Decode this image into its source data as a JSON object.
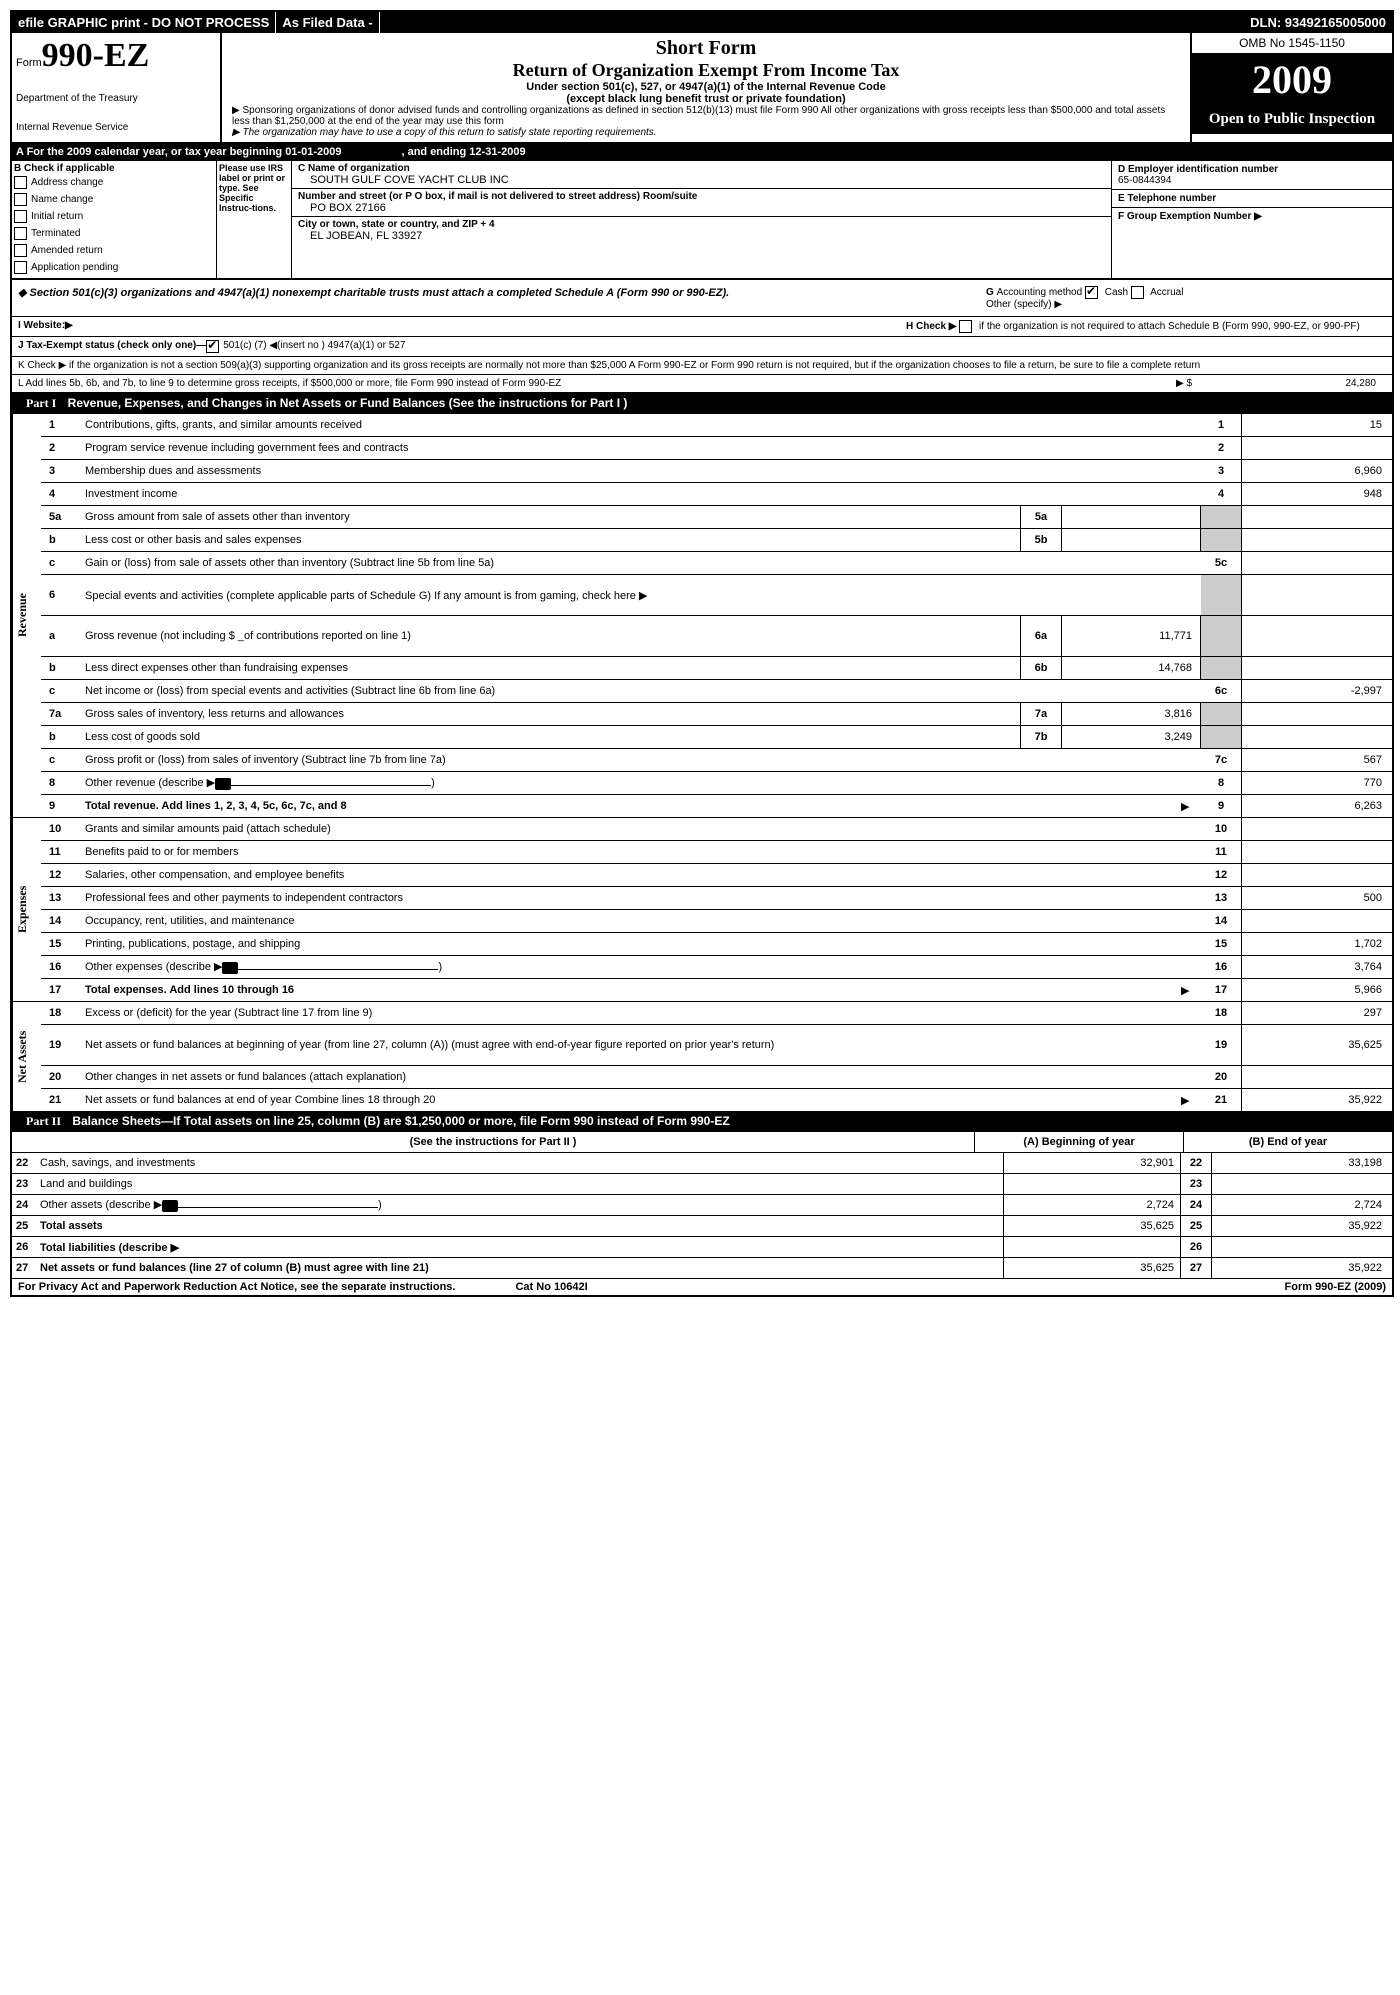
{
  "topbar": {
    "efile": "efile GRAPHIC print - DO NOT PROCESS",
    "asfiled": "As Filed Data -",
    "dln": "DLN: 93492165005000"
  },
  "header": {
    "form_label": "Form",
    "form_no": "990-EZ",
    "dept1": "Department of the Treasury",
    "dept2": "Internal Revenue Service",
    "short_form": "Short Form",
    "title": "Return of Organization Exempt From Income Tax",
    "sub1": "Under section 501(c), 527, or 4947(a)(1) of the Internal Revenue Code",
    "sub2": "(except black lung benefit trust or private foundation)",
    "note1": "▶ Sponsoring organizations of donor advised funds and controlling organizations as defined in section 512(b)(13) must file Form 990 All other organizations with gross receipts less than $500,000 and total assets less than $1,250,000 at the end of the year may use this form",
    "note2": "▶ The organization may have to use a copy of this return to satisfy state reporting requirements.",
    "omb": "OMB No 1545-1150",
    "year": "2009",
    "open": "Open to Public Inspection"
  },
  "rowA": {
    "text": "A  For the 2009 calendar year, or tax year beginning 01-01-2009",
    "ending": ", and ending 12-31-2009"
  },
  "colB": {
    "header": "B  Check if applicable",
    "items": [
      "Address change",
      "Name change",
      "Initial return",
      "Terminated",
      "Amended return",
      "Application pending"
    ]
  },
  "colLabel": "Please use IRS label or print or type. See Specific Instruc-tions.",
  "colC": {
    "name_label": "C Name of organization",
    "name": "SOUTH GULF COVE YACHT CLUB INC",
    "addr_label": "Number and street (or P O box, if mail is not delivered to street address) Room/suite",
    "addr": "PO BOX 27166",
    "city_label": "City or town, state or country, and ZIP + 4",
    "city": "EL JOBEAN, FL 33927"
  },
  "colRight": {
    "d_label": "D Employer identification number",
    "d_val": "65-0844394",
    "e_label": "E Telephone number",
    "f_label": "F Group Exemption Number  ▶"
  },
  "section501": {
    "left": "◆ Section 501(c)(3) organizations and 4947(a)(1) nonexempt charitable trusts must attach a completed Schedule A (Form 990 or 990-EZ).",
    "g": "G Accounting method      Other (specify) ▶",
    "cash": "Cash",
    "accrual": "Accrual"
  },
  "rowI": "I Website:▶",
  "rowH": {
    "h": "H  Check ▶",
    "text": "if the organization is not required to attach Schedule B (Form 990, 990-EZ, or 990-PF)"
  },
  "rowJ": "J Tax-Exempt status (check only one)—",
  "rowJ_opts": "501(c) (7) ◀(insert no )    4947(a)(1) or    527",
  "rowK": "K Check ▶    if the organization is not a section 509(a)(3) supporting organization and its gross receipts are normally not more than $25,000  A Form 990-EZ or Form 990 return is not required, but if the organization chooses to file a return, be sure to file a complete return",
  "rowL": {
    "text": "L Add lines 5b, 6b, and 7b, to line 9 to determine gross receipts, if $500,000 or more, file Form 990 instead of Form 990-EZ",
    "arrow": "▶ $",
    "val": "24,280"
  },
  "part1": {
    "title": "Revenue, Expenses, and Changes in Net Assets or Fund Balances (See the instructions for Part I )",
    "revenue_label": "Revenue",
    "expenses_label": "Expenses",
    "netassets_label": "Net Assets"
  },
  "revenue": [
    {
      "n": "1",
      "desc": "Contributions, gifts, grants, and similar amounts received",
      "rn": "1",
      "rv": "15"
    },
    {
      "n": "2",
      "desc": "Program service revenue including government fees and contracts",
      "rn": "2",
      "rv": ""
    },
    {
      "n": "3",
      "desc": "Membership dues and assessments",
      "rn": "3",
      "rv": "6,960"
    },
    {
      "n": "4",
      "desc": "Investment income",
      "rn": "4",
      "rv": "948"
    },
    {
      "n": "5a",
      "desc": "Gross amount from sale of assets other than inventory",
      "mn": "5a",
      "mv": "",
      "rn": "",
      "rv": "",
      "gray": true
    },
    {
      "n": "b",
      "desc": "Less  cost or other basis and sales expenses",
      "mn": "5b",
      "mv": "",
      "rn": "",
      "rv": "",
      "gray": true
    },
    {
      "n": "c",
      "desc": "Gain or (loss) from sale of assets other than inventory (Subtract line 5b from line 5a)",
      "rn": "5c",
      "rv": ""
    },
    {
      "n": "6",
      "desc": "Special events and activities (complete applicable parts of Schedule G)  If any amount is from gaming, check here ▶",
      "rn": "",
      "rv": "",
      "gray": true,
      "tall": true
    },
    {
      "n": "a",
      "desc": "Gross revenue (not including $ _of contributions reported on line 1)",
      "mn": "6a",
      "mv": "11,771",
      "rn": "",
      "rv": "",
      "gray": true,
      "tall": true
    },
    {
      "n": "b",
      "desc": "Less  direct expenses other than fundraising expenses",
      "mn": "6b",
      "mv": "14,768",
      "rn": "",
      "rv": "",
      "gray": true
    },
    {
      "n": "c",
      "desc": "Net income or (loss) from special events and activities (Subtract line 6b from line 6a)",
      "rn": "6c",
      "rv": "-2,997"
    },
    {
      "n": "7a",
      "desc": "Gross sales of inventory, less returns and allowances",
      "mn": "7a",
      "mv": "3,816",
      "rn": "",
      "rv": "",
      "gray": true
    },
    {
      "n": "b",
      "desc": "Less  cost of goods sold",
      "mn": "7b",
      "mv": "3,249",
      "rn": "",
      "rv": "",
      "gray": true
    },
    {
      "n": "c",
      "desc": "Gross profit or (loss) from sales of inventory (Subtract line 7b from line 7a)",
      "rn": "7c",
      "rv": "567"
    },
    {
      "n": "8",
      "desc": "Other revenue (describe ▶",
      "rn": "8",
      "rv": "770",
      "icon": true
    },
    {
      "n": "9",
      "desc": "Total revenue. Add lines 1, 2, 3, 4, 5c, 6c, 7c, and 8",
      "rn": "9",
      "rv": "6,263",
      "bold": true,
      "arrow": true
    }
  ],
  "expenses": [
    {
      "n": "10",
      "desc": "Grants and similar amounts paid (attach schedule)",
      "rn": "10",
      "rv": ""
    },
    {
      "n": "11",
      "desc": "Benefits paid to or for members",
      "rn": "11",
      "rv": ""
    },
    {
      "n": "12",
      "desc": "Salaries, other compensation, and employee benefits",
      "rn": "12",
      "rv": ""
    },
    {
      "n": "13",
      "desc": "Professional fees and other payments to independent contractors",
      "rn": "13",
      "rv": "500"
    },
    {
      "n": "14",
      "desc": "Occupancy, rent, utilities, and maintenance",
      "rn": "14",
      "rv": ""
    },
    {
      "n": "15",
      "desc": "Printing, publications, postage, and shipping",
      "rn": "15",
      "rv": "1,702"
    },
    {
      "n": "16",
      "desc": "Other expenses (describe ▶",
      "rn": "16",
      "rv": "3,764",
      "icon": true
    },
    {
      "n": "17",
      "desc": "Total expenses. Add lines 10 through 16",
      "rn": "17",
      "rv": "5,966",
      "bold": true,
      "arrow": true
    }
  ],
  "netassets": [
    {
      "n": "18",
      "desc": "Excess or (deficit) for the year (Subtract line 17 from line 9)",
      "rn": "18",
      "rv": "297"
    },
    {
      "n": "19",
      "desc": "Net assets or fund balances at beginning of year (from line 27, column (A)) (must agree with end-of-year figure reported on prior year's return)",
      "rn": "19",
      "rv": "35,625",
      "tall": true
    },
    {
      "n": "20",
      "desc": "Other changes in net assets or fund balances (attach explanation)",
      "rn": "20",
      "rv": ""
    },
    {
      "n": "21",
      "desc": "Net assets or fund balances at end of year  Combine lines 18 through 20",
      "rn": "21",
      "rv": "35,922",
      "arrow": true
    }
  ],
  "part2": {
    "title": "Balance Sheets—If Total assets on line 25, column (B) are $1,250,000 or more, file Form 990 instead of Form 990-EZ",
    "instr": "(See the instructions for Part II )",
    "colA": "(A) Beginning of year",
    "colB": "(B) End of year",
    "rows": [
      {
        "n": "22",
        "desc": "Cash, savings, and investments",
        "a": "32,901",
        "mn": "22",
        "b": "33,198"
      },
      {
        "n": "23",
        "desc": "Land and buildings",
        "a": "",
        "mn": "23",
        "b": ""
      },
      {
        "n": "24",
        "desc": "Other assets (describe ▶",
        "a": "2,724",
        "mn": "24",
        "b": "2,724",
        "icon": true
      },
      {
        "n": "25",
        "desc": "Total assets",
        "a": "35,625",
        "mn": "25",
        "b": "35,922",
        "bold": true
      },
      {
        "n": "26",
        "desc": "Total liabilities (describe ▶",
        "a": "",
        "mn": "26",
        "b": "",
        "bold": true
      },
      {
        "n": "27",
        "desc": "Net assets or fund balances (line 27 of column (B) must agree with line 21)",
        "a": "35,625",
        "mn": "27",
        "b": "35,922",
        "bold": true
      }
    ]
  },
  "footer": {
    "left": "For Privacy Act and Paperwork Reduction Act Notice, see the separate instructions.",
    "mid": "Cat No 10642I",
    "right": "Form 990-EZ (2009)"
  }
}
